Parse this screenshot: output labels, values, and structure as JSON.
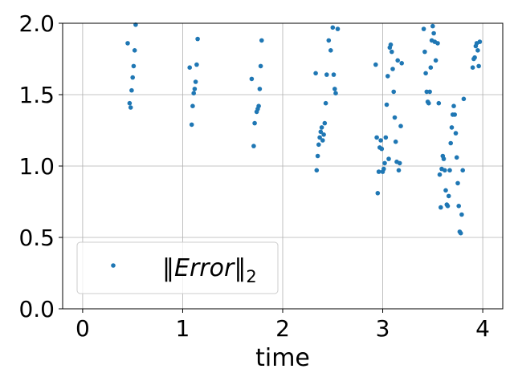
{
  "chart_data": {
    "type": "scatter",
    "xlabel": "time",
    "ylabel": "",
    "xlim": [
      -0.2,
      4.2
    ],
    "ylim": [
      0.0,
      2.0
    ],
    "xticks": [
      0,
      1,
      2,
      3,
      4
    ],
    "yticks": [
      0.0,
      0.5,
      1.0,
      1.5,
      2.0
    ],
    "xtick_labels": [
      "0",
      "1",
      "2",
      "3",
      "4"
    ],
    "ytick_labels": [
      "0.0",
      "0.5",
      "1.0",
      "1.5",
      "2.0"
    ],
    "grid": true,
    "legend_position": "lower-left",
    "series": [
      {
        "name": "‖Error‖₂",
        "legend_parts": {
          "open": "‖",
          "word": "Error",
          "close": "‖",
          "sub": "2"
        },
        "color": "#1f77b4",
        "points": [
          [
            0.45,
            1.86
          ],
          [
            0.47,
            1.44
          ],
          [
            0.48,
            1.41
          ],
          [
            0.49,
            1.53
          ],
          [
            0.5,
            1.62
          ],
          [
            0.51,
            1.7
          ],
          [
            0.52,
            1.81
          ],
          [
            0.53,
            1.99
          ],
          [
            1.07,
            1.69
          ],
          [
            1.09,
            1.29
          ],
          [
            1.1,
            1.42
          ],
          [
            1.11,
            1.51
          ],
          [
            1.12,
            1.54
          ],
          [
            1.13,
            1.59
          ],
          [
            1.14,
            1.71
          ],
          [
            1.15,
            1.89
          ],
          [
            1.69,
            1.61
          ],
          [
            1.71,
            1.14
          ],
          [
            1.72,
            1.3
          ],
          [
            1.74,
            1.38
          ],
          [
            1.75,
            1.4
          ],
          [
            1.76,
            1.42
          ],
          [
            1.77,
            1.54
          ],
          [
            1.78,
            1.7
          ],
          [
            1.79,
            1.88
          ],
          [
            2.33,
            1.65
          ],
          [
            2.34,
            0.97
          ],
          [
            2.35,
            1.07
          ],
          [
            2.36,
            1.15
          ],
          [
            2.37,
            1.2
          ],
          [
            2.38,
            1.24
          ],
          [
            2.39,
            1.27
          ],
          [
            2.4,
            1.18
          ],
          [
            2.41,
            1.22
          ],
          [
            2.42,
            1.3
          ],
          [
            2.43,
            1.44
          ],
          [
            2.44,
            1.64
          ],
          [
            2.46,
            1.88
          ],
          [
            2.48,
            1.81
          ],
          [
            2.5,
            1.97
          ],
          [
            2.51,
            1.64
          ],
          [
            2.52,
            1.54
          ],
          [
            2.53,
            1.51
          ],
          [
            2.55,
            1.96
          ],
          [
            2.93,
            1.71
          ],
          [
            2.94,
            1.2
          ],
          [
            2.95,
            0.81
          ],
          [
            2.96,
            0.96
          ],
          [
            2.97,
            1.13
          ],
          [
            2.98,
            1.18
          ],
          [
            2.99,
            1.12
          ],
          [
            3.0,
            0.96
          ],
          [
            3.01,
            0.98
          ],
          [
            3.02,
            1.02
          ],
          [
            3.03,
            1.2
          ],
          [
            3.04,
            1.43
          ],
          [
            3.05,
            1.63
          ],
          [
            3.06,
            1.05
          ],
          [
            3.07,
            1.83
          ],
          [
            3.08,
            1.85
          ],
          [
            3.09,
            1.8
          ],
          [
            3.1,
            1.68
          ],
          [
            3.11,
            1.52
          ],
          [
            3.12,
            1.34
          ],
          [
            3.13,
            1.17
          ],
          [
            3.14,
            1.03
          ],
          [
            3.15,
            1.74
          ],
          [
            3.16,
            0.97
          ],
          [
            3.17,
            1.02
          ],
          [
            3.18,
            1.28
          ],
          [
            3.19,
            1.72
          ],
          [
            3.41,
            1.96
          ],
          [
            3.42,
            1.8
          ],
          [
            3.43,
            1.65
          ],
          [
            3.44,
            1.52
          ],
          [
            3.45,
            1.45
          ],
          [
            3.46,
            1.44
          ],
          [
            3.47,
            1.52
          ],
          [
            3.48,
            1.69
          ],
          [
            3.49,
            1.88
          ],
          [
            3.5,
            1.98
          ],
          [
            3.51,
            1.93
          ],
          [
            3.52,
            1.87
          ],
          [
            3.53,
            1.74
          ],
          [
            3.55,
            1.86
          ],
          [
            3.56,
            1.44
          ],
          [
            3.57,
            0.94
          ],
          [
            3.58,
            0.71
          ],
          [
            3.59,
            0.98
          ],
          [
            3.6,
            1.07
          ],
          [
            3.61,
            1.05
          ],
          [
            3.62,
            0.97
          ],
          [
            3.63,
            0.83
          ],
          [
            3.64,
            0.73
          ],
          [
            3.65,
            0.72
          ],
          [
            3.66,
            0.79
          ],
          [
            3.67,
            0.97
          ],
          [
            3.68,
            1.16
          ],
          [
            3.69,
            1.27
          ],
          [
            3.7,
            1.36
          ],
          [
            3.71,
            1.42
          ],
          [
            3.72,
            1.36
          ],
          [
            3.73,
            1.23
          ],
          [
            3.74,
            1.06
          ],
          [
            3.75,
            0.88
          ],
          [
            3.76,
            0.72
          ],
          [
            3.77,
            0.54
          ],
          [
            3.78,
            0.53
          ],
          [
            3.79,
            0.66
          ],
          [
            3.8,
            0.97
          ],
          [
            3.81,
            1.47
          ],
          [
            3.9,
            1.69
          ],
          [
            3.91,
            1.75
          ],
          [
            3.92,
            1.76
          ],
          [
            3.93,
            1.84
          ],
          [
            3.94,
            1.86
          ],
          [
            3.95,
            1.81
          ],
          [
            3.96,
            1.7
          ],
          [
            3.97,
            1.87
          ]
        ]
      }
    ]
  }
}
